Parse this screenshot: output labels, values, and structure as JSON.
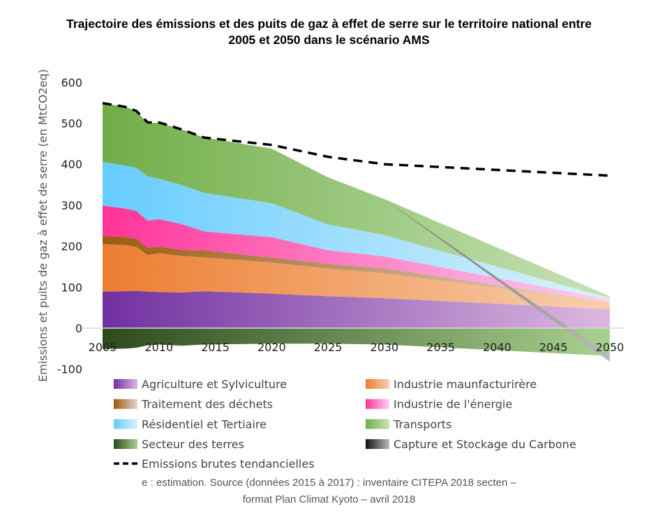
{
  "chart_data": {
    "type": "area",
    "stacked": true,
    "title": "Trajectoire des émissions et des puits de gaz à effet de serre sur le territoire national entre 2005 et 2050 dans le scénario AMS",
    "title_lines": [
      "Trajectoire des émissions et des puits de gaz à effet de serre sur le territoire national entre",
      "2005 et 2050 dans le scénario AMS"
    ],
    "xlabel": "",
    "ylabel": "Emissions et puits de gaz à effet de serre (en MtCO2eq)",
    "xlim": [
      2005,
      2050
    ],
    "ylim": [
      -100,
      600
    ],
    "xticks": [
      "2005",
      "2010",
      "2015",
      "2020",
      "2025",
      "2030",
      "2035",
      "2040",
      "2045",
      "2050"
    ],
    "yticks": [
      "600",
      "500",
      "400",
      "300",
      "200",
      "100",
      "0",
      "-100"
    ],
    "grid": false,
    "legend_position": "bottom",
    "x": [
      2005,
      2007,
      2008,
      2009,
      2010,
      2012,
      2014,
      2020,
      2025,
      2030,
      2050
    ],
    "series": [
      {
        "name": "Agriculture et Sylviculture",
        "color": "#7030a0",
        "light": "#dcb8e0",
        "values": [
          89,
          90,
          91,
          89,
          88,
          87,
          90,
          84,
          78,
          73,
          46
        ]
      },
      {
        "name": "Industrie maunfacturirère",
        "color": "#ed7d31",
        "light": "#f8cfae",
        "values": [
          116,
          113,
          107,
          89,
          95,
          89,
          83,
          76,
          67,
          61,
          17
        ]
      },
      {
        "name": "Traitement des déchets",
        "color": "#9c5b0f",
        "light": "#e6d3d3",
        "values": [
          20,
          19,
          20,
          18,
          16,
          15,
          17,
          12,
          12,
          12,
          1
        ]
      },
      {
        "name": "Industrie de l'énergie",
        "color": "#ff3399",
        "light": "#fcd0f3",
        "values": [
          74,
          70,
          68,
          66,
          67,
          63,
          46,
          50,
          33,
          29,
          6
        ]
      },
      {
        "name": "Résidentiel et Tertiaire",
        "color": "#66ccff",
        "light": "#def2fb",
        "values": [
          106,
          105,
          105,
          108,
          99,
          95,
          94,
          83,
          63,
          52,
          3
        ]
      },
      {
        "name": "Transports",
        "color": "#70ad47",
        "light": "#c8e2b8",
        "values": [
          144,
          143,
          139,
          130,
          136,
          136,
          135,
          133,
          115,
          88,
          5
        ]
      },
      {
        "name": "Secteur des terres",
        "color": "#2d4a1e",
        "light": "#a9d18e",
        "values": [
          -51,
          -50,
          -48,
          -42,
          -40,
          -43,
          -40,
          -38,
          -38,
          -40,
          -68
        ]
      },
      {
        "name": "Capture et Stockage du Carbone",
        "color": "#111111",
        "light": "#bbbbbb",
        "values": [
          0,
          0,
          0,
          0,
          0,
          0,
          0,
          0,
          0,
          0,
          -14
        ]
      }
    ],
    "line": {
      "name": "Emissions brutes tendancielles",
      "style": "dashed",
      "color": "#000000",
      "values": [
        549,
        540,
        530,
        502,
        502,
        485,
        465,
        447,
        418,
        400,
        372
      ]
    }
  },
  "footnote": [
    "e : estimation. Source (données 2015 à 2017) : inventaire CITEPA 2018 secten –",
    "format Plan Climat Kyoto – avril 2018"
  ]
}
